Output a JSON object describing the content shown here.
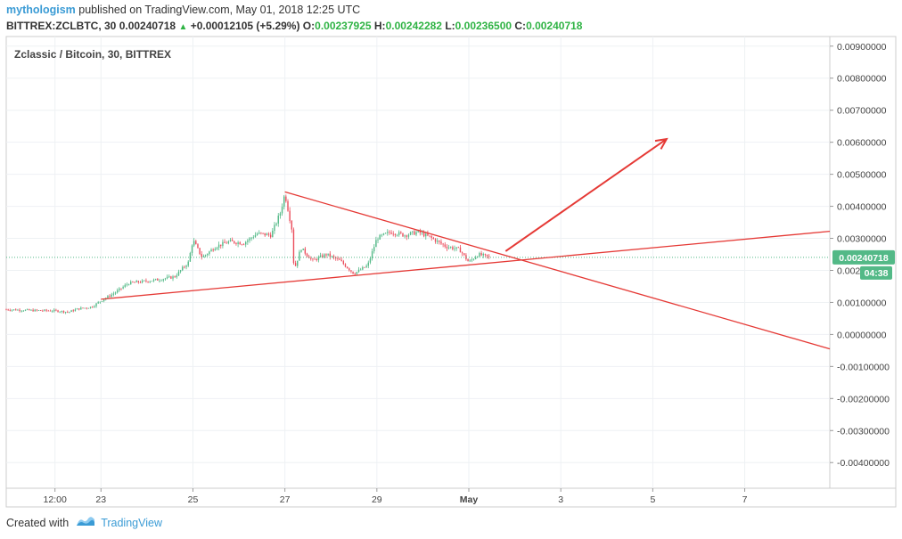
{
  "header": {
    "author": "mythologism",
    "published": "published on TradingView.com, May 01, 2018 12:25 UTC",
    "symbol": "BITTREX:ZCLBTC, 30",
    "last": "0.00240718",
    "change": "+0.00012105 (+5.29%)",
    "o_label": "O:",
    "o_value": "0.00237925",
    "h_label": "H:",
    "h_value": "0.00242282",
    "l_label": "L:",
    "l_value": "0.00236500",
    "c_label": "C:",
    "c_value": "0.00240718"
  },
  "footer": {
    "created_with": "Created with",
    "brand": "TradingView"
  },
  "chart_data": {
    "type": "candlestick",
    "title": "Zclassic / Bitcoin, 30, BITTREX",
    "x_labels": [
      "12:00",
      "23",
      "25",
      "27",
      "29",
      "May",
      "3",
      "5",
      "7"
    ],
    "x_label_positions": [
      0,
      1,
      3,
      5,
      7,
      9,
      11,
      13,
      15
    ],
    "xlim": [
      -1.06,
      16.85
    ],
    "ylim": [
      -0.0048,
      0.0093
    ],
    "y_ticks": [
      0.009,
      0.008,
      0.007,
      0.006,
      0.005,
      0.004,
      0.003,
      0.002,
      0.001,
      0.0,
      -0.001,
      -0.002,
      -0.003,
      -0.004
    ],
    "y_tick_labels": [
      "0.00900000",
      "0.00800000",
      "0.00700000",
      "0.00600000",
      "0.00500000",
      "0.00400000",
      "0.00300000",
      "0.002",
      "0.00100000",
      "0.00000000",
      "-0.00100000",
      "-0.00200000",
      "-0.00300000",
      "-0.00400000"
    ],
    "last_price": 0.00240718,
    "last_price_label": "0.00240718",
    "countdown_label": "04:38",
    "up_color": "#53b987",
    "down_color": "#eb4d5c",
    "price_path": [
      [
        -1.06,
        0.00078
      ],
      [
        -0.5,
        0.00075
      ],
      [
        0.0,
        0.00074
      ],
      [
        0.3,
        0.0007
      ],
      [
        0.5,
        0.0008
      ],
      [
        0.8,
        0.00086
      ],
      [
        1.0,
        0.00105
      ],
      [
        1.3,
        0.0013
      ],
      [
        1.6,
        0.0016
      ],
      [
        1.9,
        0.00165
      ],
      [
        2.2,
        0.0017
      ],
      [
        2.6,
        0.0018
      ],
      [
        2.9,
        0.00225
      ],
      [
        3.0,
        0.00295
      ],
      [
        3.2,
        0.0024
      ],
      [
        3.5,
        0.00275
      ],
      [
        3.8,
        0.0029
      ],
      [
        4.1,
        0.00285
      ],
      [
        4.4,
        0.00315
      ],
      [
        4.7,
        0.0031
      ],
      [
        4.9,
        0.0038
      ],
      [
        5.0,
        0.0044
      ],
      [
        5.15,
        0.0033
      ],
      [
        5.2,
        0.002
      ],
      [
        5.35,
        0.0027
      ],
      [
        5.6,
        0.0023
      ],
      [
        5.9,
        0.0025
      ],
      [
        6.2,
        0.0023
      ],
      [
        6.5,
        0.0019
      ],
      [
        6.8,
        0.00215
      ],
      [
        7.0,
        0.003
      ],
      [
        7.3,
        0.0032
      ],
      [
        7.6,
        0.0031
      ],
      [
        7.9,
        0.0032
      ],
      [
        8.2,
        0.003
      ],
      [
        8.5,
        0.00275
      ],
      [
        8.8,
        0.00265
      ],
      [
        9.0,
        0.00225
      ],
      [
        9.2,
        0.0025
      ],
      [
        9.45,
        0.00241
      ]
    ],
    "annotations": [
      {
        "type": "trendline",
        "label": "upper descending trendline",
        "x1": 5.0,
        "y1": 0.00445,
        "x2": 16.85,
        "y2": -0.00045
      },
      {
        "type": "trendline",
        "label": "lower ascending trendline",
        "x1": 1.0,
        "y1": 0.0011,
        "x2": 16.85,
        "y2": 0.00322
      },
      {
        "type": "arrow",
        "label": "breakout projection arrow",
        "x1": 9.8,
        "y1": 0.0026,
        "x2": 13.3,
        "y2": 0.0061
      }
    ]
  }
}
